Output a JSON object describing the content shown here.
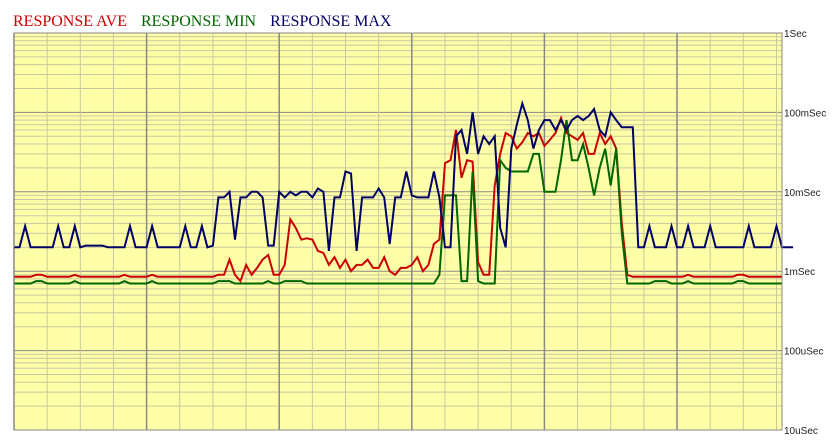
{
  "chart_data": {
    "type": "line",
    "title": "",
    "yscale": "log",
    "ylim": [
      1e-05,
      1
    ],
    "yticks": [
      {
        "label": "1Sec",
        "value": 1
      },
      {
        "label": "100mSec",
        "value": 0.1
      },
      {
        "label": "10mSec",
        "value": 0.01
      },
      {
        "label": "1mSec",
        "value": 0.001
      },
      {
        "label": "100uSec",
        "value": 0.0001
      },
      {
        "label": "10uSec",
        "value": 1e-05
      }
    ],
    "x_count": 140,
    "x_major_every": 24,
    "grid": true,
    "background": "#ffffa8",
    "legend_position": "top-left",
    "series": [
      {
        "name": "RESPONSE AVE",
        "color": "#cc0000",
        "values": [
          0.00085,
          0.00085,
          0.00085,
          0.00085,
          0.0009,
          0.0009,
          0.00085,
          0.00085,
          0.00085,
          0.00085,
          0.00085,
          0.0009,
          0.00085,
          0.00085,
          0.00085,
          0.00085,
          0.00085,
          0.00085,
          0.00085,
          0.00085,
          0.0009,
          0.00085,
          0.00085,
          0.00085,
          0.00085,
          0.0009,
          0.00085,
          0.00085,
          0.00085,
          0.00085,
          0.00085,
          0.00085,
          0.00085,
          0.00085,
          0.00085,
          0.00085,
          0.00085,
          0.0009,
          0.0009,
          0.0014,
          0.0009,
          0.00075,
          0.0012,
          0.0009,
          0.0011,
          0.0014,
          0.0016,
          0.0009,
          0.0009,
          0.0012,
          0.0045,
          0.0035,
          0.0025,
          0.0026,
          0.0025,
          0.0018,
          0.0017,
          0.0012,
          0.0015,
          0.0011,
          0.0014,
          0.001,
          0.0012,
          0.0012,
          0.0014,
          0.0011,
          0.0011,
          0.0015,
          0.001,
          0.0009,
          0.0011,
          0.0011,
          0.0012,
          0.0015,
          0.001,
          0.0012,
          0.0022,
          0.0025,
          0.023,
          0.025,
          0.06,
          0.015,
          0.025,
          0.024,
          0.0013,
          0.0009,
          0.0009,
          0.012,
          0.03,
          0.055,
          0.05,
          0.035,
          0.042,
          0.055,
          0.05,
          0.055,
          0.038,
          0.045,
          0.055,
          0.085,
          0.055,
          0.05,
          0.045,
          0.055,
          0.03,
          0.03,
          0.055,
          0.04,
          0.05,
          0.035,
          0.004,
          0.0009,
          0.00085,
          0.00085,
          0.00085,
          0.00085,
          0.00085,
          0.00085,
          0.00085,
          0.00085,
          0.00085,
          0.00085,
          0.0009,
          0.00085,
          0.00085,
          0.00085,
          0.00085,
          0.00085,
          0.00085,
          0.00085,
          0.00085,
          0.0009,
          0.0009,
          0.00085,
          0.00085,
          0.00085,
          0.00085,
          0.00085,
          0.00085,
          0.00085
        ]
      },
      {
        "name": "RESPONSE MIN",
        "color": "#006600",
        "values": [
          0.0007,
          0.0007,
          0.0007,
          0.0007,
          0.00075,
          0.00075,
          0.0007,
          0.0007,
          0.0007,
          0.0007,
          0.0007,
          0.00075,
          0.0007,
          0.0007,
          0.0007,
          0.0007,
          0.0007,
          0.0007,
          0.0007,
          0.0007,
          0.00075,
          0.0007,
          0.0007,
          0.0007,
          0.0007,
          0.00075,
          0.0007,
          0.0007,
          0.0007,
          0.0007,
          0.0007,
          0.0007,
          0.0007,
          0.0007,
          0.0007,
          0.0007,
          0.0007,
          0.00075,
          0.00075,
          0.00075,
          0.0007,
          0.0007,
          0.0007,
          0.0007,
          0.0007,
          0.0007,
          0.00075,
          0.0007,
          0.0007,
          0.00075,
          0.00075,
          0.00075,
          0.00075,
          0.0007,
          0.0007,
          0.0007,
          0.0007,
          0.0007,
          0.0007,
          0.0007,
          0.0007,
          0.0007,
          0.0007,
          0.0007,
          0.0007,
          0.0007,
          0.0007,
          0.0007,
          0.0007,
          0.0007,
          0.0007,
          0.0007,
          0.0007,
          0.0007,
          0.0007,
          0.0007,
          0.0007,
          0.0009,
          0.009,
          0.009,
          0.009,
          0.00075,
          0.00075,
          0.018,
          0.00075,
          0.0007,
          0.0007,
          0.0007,
          0.025,
          0.02,
          0.018,
          0.018,
          0.018,
          0.018,
          0.03,
          0.03,
          0.01,
          0.01,
          0.01,
          0.025,
          0.08,
          0.025,
          0.025,
          0.04,
          0.02,
          0.009,
          0.02,
          0.035,
          0.012,
          0.035,
          0.003,
          0.0007,
          0.0007,
          0.0007,
          0.0007,
          0.0007,
          0.00075,
          0.00075,
          0.00075,
          0.0007,
          0.0007,
          0.0007,
          0.00075,
          0.0007,
          0.0007,
          0.0007,
          0.0007,
          0.0007,
          0.0007,
          0.0007,
          0.0007,
          0.00075,
          0.00075,
          0.0007,
          0.0007,
          0.0007,
          0.0007,
          0.0007,
          0.0007,
          0.0007
        ]
      },
      {
        "name": "RESPONSE MAX",
        "color": "#000066",
        "values": [
          0.002,
          0.002,
          0.0037,
          0.002,
          0.002,
          0.002,
          0.002,
          0.002,
          0.0037,
          0.002,
          0.002,
          0.0037,
          0.002,
          0.0021,
          0.0021,
          0.0021,
          0.0021,
          0.002,
          0.002,
          0.002,
          0.002,
          0.0037,
          0.002,
          0.002,
          0.002,
          0.0037,
          0.002,
          0.002,
          0.002,
          0.002,
          0.002,
          0.0037,
          0.002,
          0.002,
          0.0037,
          0.002,
          0.0021,
          0.0085,
          0.0085,
          0.01,
          0.0025,
          0.0085,
          0.0085,
          0.01,
          0.01,
          0.0085,
          0.0021,
          0.0021,
          0.01,
          0.0085,
          0.01,
          0.009,
          0.01,
          0.01,
          0.0085,
          0.011,
          0.01,
          0.0018,
          0.0085,
          0.0085,
          0.018,
          0.017,
          0.0018,
          0.0085,
          0.0085,
          0.0085,
          0.011,
          0.0085,
          0.0022,
          0.0085,
          0.0085,
          0.018,
          0.009,
          0.0085,
          0.0085,
          0.0085,
          0.018,
          0.0085,
          0.002,
          0.002,
          0.05,
          0.06,
          0.03,
          0.1,
          0.03,
          0.05,
          0.04,
          0.05,
          0.0035,
          0.002,
          0.035,
          0.07,
          0.13,
          0.08,
          0.035,
          0.06,
          0.08,
          0.08,
          0.06,
          0.08,
          0.06,
          0.08,
          0.09,
          0.08,
          0.09,
          0.11,
          0.06,
          0.05,
          0.1,
          0.08,
          0.065,
          0.065,
          0.065,
          0.002,
          0.002,
          0.0037,
          0.002,
          0.002,
          0.002,
          0.0037,
          0.002,
          0.002,
          0.0037,
          0.002,
          0.002,
          0.002,
          0.0037,
          0.002,
          0.002,
          0.002,
          0.002,
          0.002,
          0.002,
          0.0037,
          0.002,
          0.002,
          0.002,
          0.002,
          0.0037,
          0.002,
          0.002,
          0.002
        ]
      }
    ]
  }
}
